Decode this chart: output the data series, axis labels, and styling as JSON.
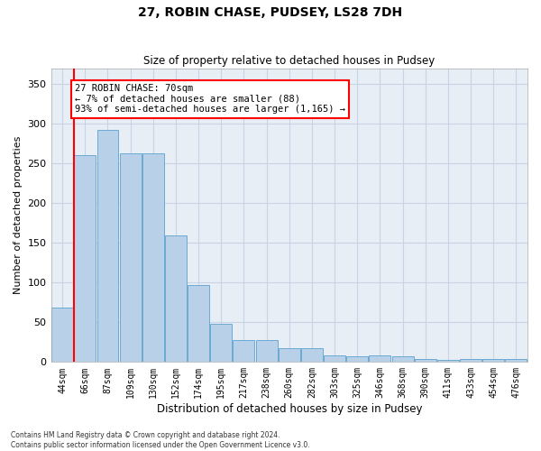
{
  "title": "27, ROBIN CHASE, PUDSEY, LS28 7DH",
  "subtitle": "Size of property relative to detached houses in Pudsey",
  "xlabel": "Distribution of detached houses by size in Pudsey",
  "ylabel": "Number of detached properties",
  "bar_color": "#b8d0e8",
  "bar_edge_color": "#6aaad4",
  "grid_color": "#c8d4e4",
  "background_color": "#e8eef6",
  "annotation_text": "27 ROBIN CHASE: 70sqm\n← 7% of detached houses are smaller (88)\n93% of semi-detached houses are larger (1,165) →",
  "footnote": "Contains HM Land Registry data © Crown copyright and database right 2024.\nContains public sector information licensed under the Open Government Licence v3.0.",
  "categories": [
    "44sqm",
    "66sqm",
    "87sqm",
    "109sqm",
    "130sqm",
    "152sqm",
    "174sqm",
    "195sqm",
    "217sqm",
    "238sqm",
    "260sqm",
    "282sqm",
    "303sqm",
    "325sqm",
    "346sqm",
    "368sqm",
    "390sqm",
    "411sqm",
    "433sqm",
    "454sqm",
    "476sqm"
  ],
  "values": [
    68,
    260,
    292,
    263,
    263,
    160,
    97,
    48,
    28,
    28,
    17,
    17,
    8,
    7,
    8,
    7,
    4,
    3,
    4,
    4,
    4
  ],
  "ylim": [
    0,
    370
  ],
  "yticks": [
    0,
    50,
    100,
    150,
    200,
    250,
    300,
    350
  ],
  "red_line_x": 0.5
}
